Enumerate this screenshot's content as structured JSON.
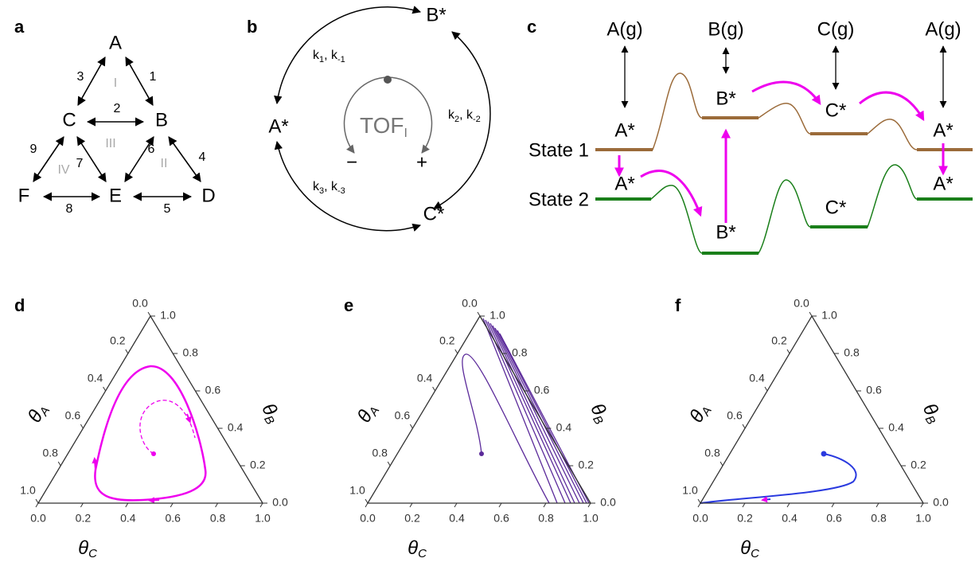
{
  "panel_labels": [
    "a",
    "b",
    "c",
    "d",
    "e",
    "f"
  ],
  "network": {
    "nodes": [
      "A",
      "B",
      "C",
      "D",
      "E",
      "F"
    ],
    "edges": [
      "1",
      "2",
      "3",
      "4",
      "5",
      "6",
      "7",
      "8",
      "9"
    ],
    "regions": [
      "I",
      "II",
      "III",
      "IV"
    ]
  },
  "cycle": {
    "species": [
      "B*",
      "A*",
      "C*"
    ],
    "rates": [
      [
        "k",
        "1",
        ", k",
        "-1"
      ],
      [
        "k",
        "2",
        ", k",
        "-2"
      ],
      [
        "k",
        "3",
        ", k",
        "-3"
      ]
    ],
    "tof": [
      "TOF",
      "I"
    ],
    "signs": [
      "−",
      "+"
    ]
  },
  "energy": {
    "gases": [
      "A(g)",
      "B(g)",
      "C(g)",
      "A(g)"
    ],
    "states": [
      "State 1",
      "State 2"
    ],
    "state1_species": [
      "A*",
      "B*",
      "C*",
      "A*"
    ],
    "state2_species": [
      "A*",
      "B*",
      "C*",
      "A*"
    ]
  },
  "ternary": {
    "ticks": [
      "0.0",
      "0.2",
      "0.4",
      "0.6",
      "0.8",
      "1.0"
    ],
    "axes": [
      {
        "symbol": "θ",
        "sub": "A"
      },
      {
        "symbol": "θ",
        "sub": "B"
      },
      {
        "symbol": "θ",
        "sub": "C"
      }
    ]
  }
}
